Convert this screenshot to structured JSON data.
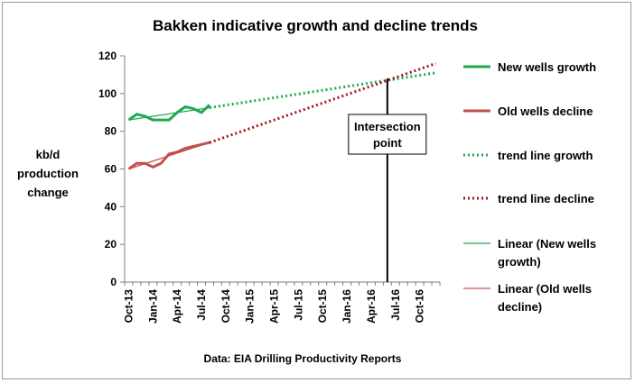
{
  "chart_data": {
    "type": "line",
    "title": "Bakken indicative growth and decline trends",
    "ylabel_lines": [
      "kb/d",
      "production",
      "change"
    ],
    "footnote": "Data: EIA Drilling Productivity Reports",
    "ylim": [
      0,
      120
    ],
    "yticks": [
      0,
      20,
      40,
      60,
      80,
      100,
      120
    ],
    "grid": false,
    "legend_position": "right",
    "x_labels": [
      "Oct-13",
      "Jan-14",
      "Apr-14",
      "Jul-14",
      "Oct-14",
      "Jan-15",
      "Apr-15",
      "Jul-15",
      "Oct-15",
      "Jan-16",
      "Apr-16",
      "Jul-16",
      "Oct-16"
    ],
    "x_months": [
      "Oct-13",
      "Nov-13",
      "Dec-13",
      "Jan-14",
      "Feb-14",
      "Mar-14",
      "Apr-14",
      "May-14",
      "Jun-14",
      "Jul-14",
      "Aug-14",
      "Sep-14",
      "Oct-14",
      "Nov-14",
      "Dec-14",
      "Jan-15",
      "Feb-15",
      "Mar-15",
      "Apr-15",
      "May-15",
      "Jun-15",
      "Jul-15",
      "Aug-15",
      "Sep-15",
      "Oct-15",
      "Nov-15",
      "Dec-15",
      "Jan-16",
      "Feb-16",
      "Mar-16",
      "Apr-16",
      "May-16",
      "Jun-16",
      "Jul-16",
      "Aug-16",
      "Sep-16",
      "Oct-16",
      "Nov-16",
      "Dec-16"
    ],
    "series": [
      {
        "name": "New wells growth",
        "style": "solid-thick",
        "color": "#1faa4f",
        "x": [
          "Oct-13",
          "Nov-13",
          "Dec-13",
          "Jan-14",
          "Feb-14",
          "Mar-14",
          "Apr-14",
          "May-14",
          "Jun-14",
          "Jul-14",
          "Aug-14"
        ],
        "values": [
          86,
          89,
          88,
          86,
          86,
          86,
          90,
          93,
          92,
          90,
          94
        ]
      },
      {
        "name": "Old wells decline",
        "style": "solid-thick",
        "color": "#c0504d",
        "x": [
          "Oct-13",
          "Nov-13",
          "Dec-13",
          "Jan-14",
          "Feb-14",
          "Mar-14",
          "Apr-14",
          "May-14",
          "Jun-14",
          "Jul-14",
          "Aug-14"
        ],
        "values": [
          60,
          63,
          63,
          61,
          63,
          68,
          69,
          71,
          72,
          73,
          74
        ]
      },
      {
        "name": "trend line growth",
        "style": "dotted",
        "color": "#1faa4f",
        "x": [
          "Aug-14",
          "Dec-16"
        ],
        "values": [
          92.5,
          111
        ]
      },
      {
        "name": "trend line decline",
        "style": "dotted",
        "color": "#a01818",
        "x": [
          "Aug-14",
          "Dec-16"
        ],
        "values": [
          74,
          116
        ]
      },
      {
        "name": "Linear (New wells growth)",
        "style": "solid-thin",
        "color": "#1faa4f",
        "x": [
          "Oct-13",
          "Aug-14"
        ],
        "values": [
          86,
          92.5
        ]
      },
      {
        "name": "Linear (Old wells decline)",
        "style": "solid-thin",
        "color": "#c0504d",
        "x": [
          "Oct-13",
          "Aug-14"
        ],
        "values": [
          60,
          74
        ]
      }
    ],
    "annotation": {
      "lines": [
        "Intersection",
        "point"
      ],
      "x": "Jun-16"
    },
    "legend_lines": [
      [
        "New wells growth"
      ],
      [
        "Old wells decline"
      ],
      [
        "trend line growth"
      ],
      [
        "trend line decline"
      ],
      [
        "Linear (New wells",
        "growth)"
      ],
      [
        "Linear (Old wells",
        "decline)"
      ]
    ]
  }
}
